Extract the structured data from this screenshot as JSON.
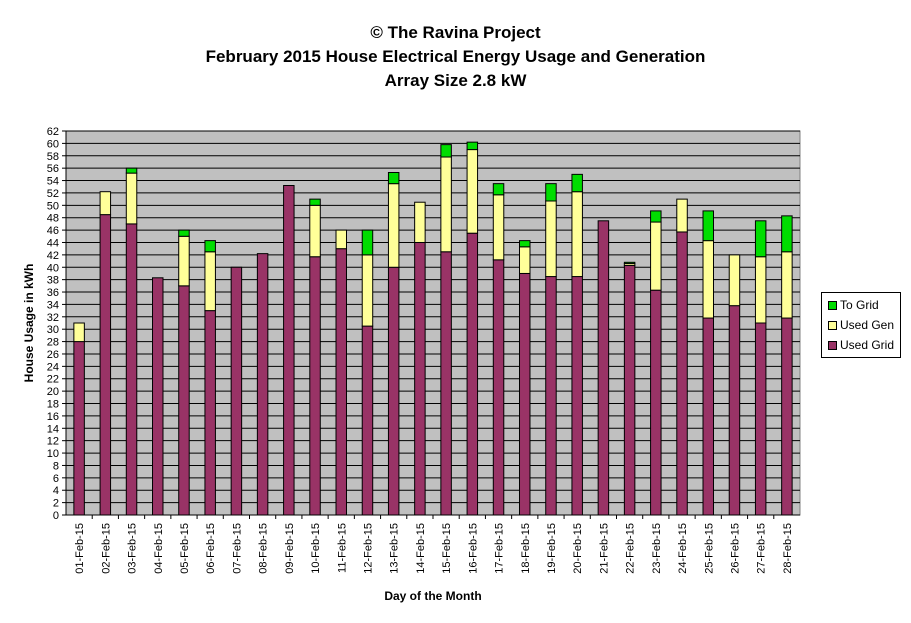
{
  "header": {
    "line1": "© The Ravina Project",
    "line2": "February 2015 House Electrical Energy Usage and Generation",
    "line3": "Array Size 2.8 kW"
  },
  "legend": {
    "items": [
      {
        "label": "To Grid",
        "color": "#00dd00"
      },
      {
        "label": "Used Gen",
        "color": "#ffff99"
      },
      {
        "label": "Used Grid",
        "color": "#993366"
      }
    ]
  },
  "chart_data": {
    "type": "bar",
    "stacked": true,
    "title": "February 2015 House Electrical Energy Usage and Generation",
    "xlabel": "Day of the Month",
    "ylabel": "House Usage in kWh",
    "ylim": [
      0,
      62
    ],
    "ytick_step": 2,
    "grid": true,
    "plot_background": "#c0c0c0",
    "legend_position": "right",
    "categories": [
      "01-Feb-15",
      "02-Feb-15",
      "03-Feb-15",
      "04-Feb-15",
      "05-Feb-15",
      "06-Feb-15",
      "07-Feb-15",
      "08-Feb-15",
      "09-Feb-15",
      "10-Feb-15",
      "11-Feb-15",
      "12-Feb-15",
      "13-Feb-15",
      "14-Feb-15",
      "15-Feb-15",
      "16-Feb-15",
      "17-Feb-15",
      "18-Feb-15",
      "19-Feb-15",
      "20-Feb-15",
      "21-Feb-15",
      "22-Feb-15",
      "23-Feb-15",
      "24-Feb-15",
      "25-Feb-15",
      "26-Feb-15",
      "27-Feb-15",
      "28-Feb-15"
    ],
    "series": [
      {
        "name": "Used Grid",
        "color": "#993366",
        "values": [
          28.0,
          48.5,
          47.0,
          38.3,
          37.0,
          33.0,
          40.0,
          42.2,
          53.2,
          41.7,
          43.0,
          30.5,
          40.0,
          44.0,
          42.5,
          45.5,
          41.2,
          39.0,
          38.5,
          38.5,
          47.5,
          40.3,
          36.3,
          45.7,
          31.8,
          33.8,
          31.0,
          31.8
        ]
      },
      {
        "name": "Used Gen",
        "color": "#ffff99",
        "values": [
          3.0,
          3.7,
          8.2,
          0.0,
          8.0,
          9.5,
          0.0,
          0.0,
          0.0,
          8.3,
          3.0,
          11.5,
          13.5,
          6.5,
          15.3,
          13.5,
          10.5,
          4.3,
          12.2,
          13.7,
          0.0,
          0.3,
          11.0,
          5.3,
          12.5,
          8.2,
          10.7,
          10.7
        ]
      },
      {
        "name": "To Grid",
        "color": "#00dd00",
        "values": [
          0.0,
          0.0,
          0.8,
          0.0,
          1.0,
          1.8,
          0.0,
          0.0,
          0.0,
          1.0,
          0.0,
          4.0,
          1.8,
          0.0,
          2.0,
          1.2,
          1.8,
          1.0,
          2.8,
          2.8,
          0.0,
          0.2,
          1.8,
          0.0,
          4.8,
          0.0,
          5.8,
          5.8
        ]
      }
    ]
  }
}
